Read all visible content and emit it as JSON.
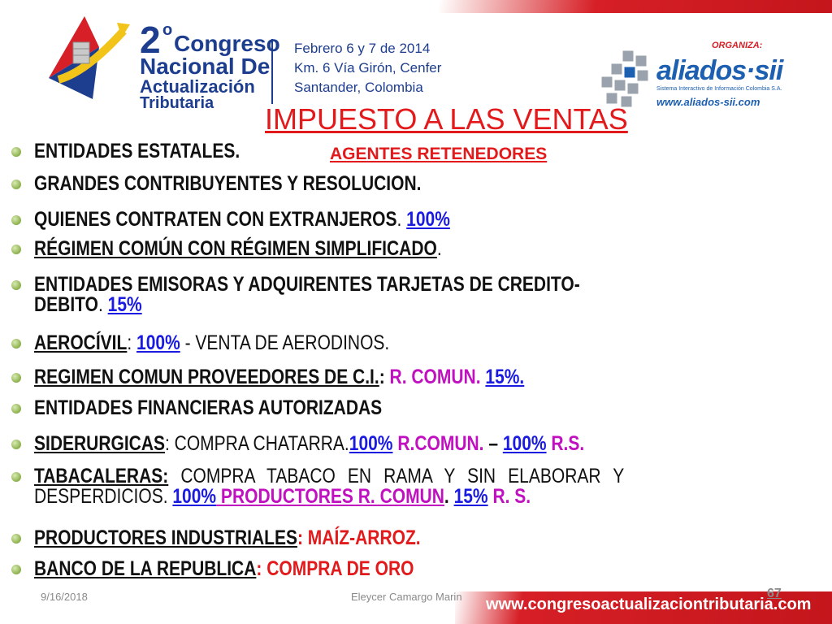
{
  "header": {
    "logo": {
      "number": "2",
      "degree": "o",
      "line1": "Congreso",
      "line2": "Nacional De",
      "line3": "Actualización",
      "line4": "Tributaria"
    },
    "event_info": [
      "Febrero 6 y 7 de 2014",
      "Km. 6 Vía Girón, Cenfer",
      "Santander, Colombia"
    ],
    "organizer": {
      "label": "ORGANIZA:",
      "name": "aliados·sii",
      "tagline": "Sistema Interactivo de Información Colombia S.A.",
      "url": "www.aliados-sii.com"
    }
  },
  "title": "IMPUESTO A LAS VENTAS",
  "subtitle": "AGENTES RETENEDORES",
  "bullets": {
    "b1": "ENTIDADES ESTATALES.",
    "b2": "GRANDES CONTRIBUYENTES Y RESOLUCION.",
    "b3": {
      "text": "QUIENES CONTRATEN CON EXTRANJEROS",
      "dot": ".",
      "pct": "100%"
    },
    "b4": {
      "text": "RÉGIMEN COMÚN CON RÉGIMEN SIMPLIFICADO",
      "dot": "."
    },
    "b5": {
      "line1": "ENTIDADES EMISORAS Y ADQUIRENTES TARJETAS DE CREDITO-",
      "line2": "DEBITO",
      "dot": ".",
      "pct": "15%"
    },
    "b6": {
      "name": "AEROCÍVIL",
      "colon": ":",
      "pct": "100%",
      "rest": " - VENTA DE AERODINOS."
    },
    "b7": {
      "name": "REGIMEN COMUN PROVEEDORES DE C.I.",
      "colon": ":",
      "rc": "R. COMUN.",
      "pct": "15%."
    },
    "b8": "ENTIDADES FINANCIERAS AUTORIZADAS",
    "b9": {
      "name": "SIDERURGICAS",
      "rest": ": COMPRA CHATARRA.",
      "pct1": "100%",
      "rc": " R.COMUN.",
      "dash": " – ",
      "pct2": "100%",
      "rs": " R.S."
    },
    "b10": {
      "name": "TABACALERAS:",
      "line1": " COMPRA TABACO EN RAMA Y SIN ELABORAR Y",
      "line2": "DESPERDICIOS. ",
      "pct1": "100%",
      "prod": " PRODUCTORES R. COMUN",
      "dot": ". ",
      "pct2": "15%",
      "rs": " R. S."
    },
    "b11": {
      "name": "PRODUCTORES INDUSTRIALES",
      "rest": ": MAÍZ-ARROZ."
    },
    "b12": {
      "name": "BANCO DE LA REPUBLICA",
      "rest": ": COMPRA DE ORO"
    }
  },
  "footer": {
    "date": "9/16/2018",
    "author": "Eleycer Camargo Marin",
    "page": "67",
    "url": "www.congresoactualizaciontributaria.com"
  },
  "colors": {
    "title_red": "#e31a1c",
    "link_blue": "#1a1ae0",
    "magenta": "#c010c0",
    "logo_blue": "#1d3d8f",
    "bullet_green": "#8bb04a"
  },
  "icons": {
    "logo_mark": "pyramid-arrow-logo-icon",
    "organizer_mark": "cubes-logo-icon",
    "bullet": "green-dot-icon"
  }
}
